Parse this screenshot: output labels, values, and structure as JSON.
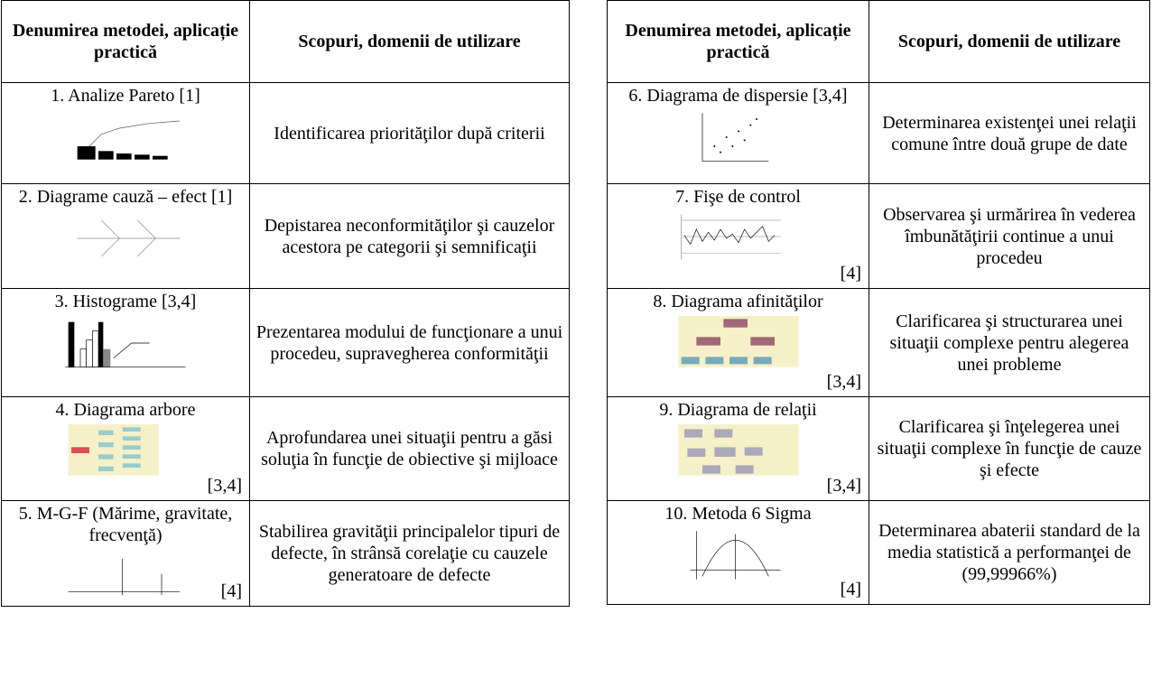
{
  "tables": [
    {
      "header": [
        "Denumirea metodei, aplicație practică",
        "Scopuri, domenii de utilizare"
      ],
      "rows": [
        {
          "method": "1. Analize Pareto [1]",
          "purpose": "Identificarea priorităţilor după criterii"
        },
        {
          "method": "2. Diagrame cauză – efect [1]",
          "purpose": "Depistarea neconformităţilor şi cauzelor acestora pe categorii şi semnificaţii"
        },
        {
          "method": "3. Histograme [3,4]",
          "purpose": "Prezentarea modului de funcţionare a unui procedeu, supravegherea conformităţii"
        },
        {
          "method": "4. Diagrama arbore",
          "ref": "[3,4]",
          "purpose": "Aprofundarea unei situaţii pentru a găsi soluţia în funcţie de obiective şi mijloace"
        },
        {
          "method": "5. M-G-F (Mărime, gravitate, frecvenţă)",
          "ref": "[4]",
          "purpose": "Stabilirea gravităţii principalelor tipuri de defecte, în strânsă corelaţie cu cauzele generatoare de defecte"
        }
      ]
    },
    {
      "header": [
        "Denumirea metodei, aplicație practică",
        "Scopuri, domenii de utilizare"
      ],
      "rows": [
        {
          "method": "6. Diagrama de dispersie [3,4]",
          "purpose": "Determinarea existenţei unei relaţii comune între două grupe de date"
        },
        {
          "method": "7. Fişe de control",
          "ref": "[4]",
          "purpose": "Observarea şi urmărirea în vederea îmbunătăţirii continue a unui procedeu"
        },
        {
          "method": "8. Diagrama afinităţilor",
          "ref": "[3,4]",
          "purpose": "Clarificarea şi structurarea unei situaţii complexe pentru alegerea unei probleme"
        },
        {
          "method": "9. Diagrama de relaţii",
          "ref": "[3,4]",
          "purpose": "Clarificarea şi înţelegerea unei situaţii complexe în funcţie de cauze şi efecte"
        },
        {
          "method": "10. Metoda 6 Sigma",
          "ref": "[4]",
          "purpose": "Determinarea  abaterii standard de la media statistică a performanţei de (99,99966%)"
        }
      ]
    }
  ]
}
